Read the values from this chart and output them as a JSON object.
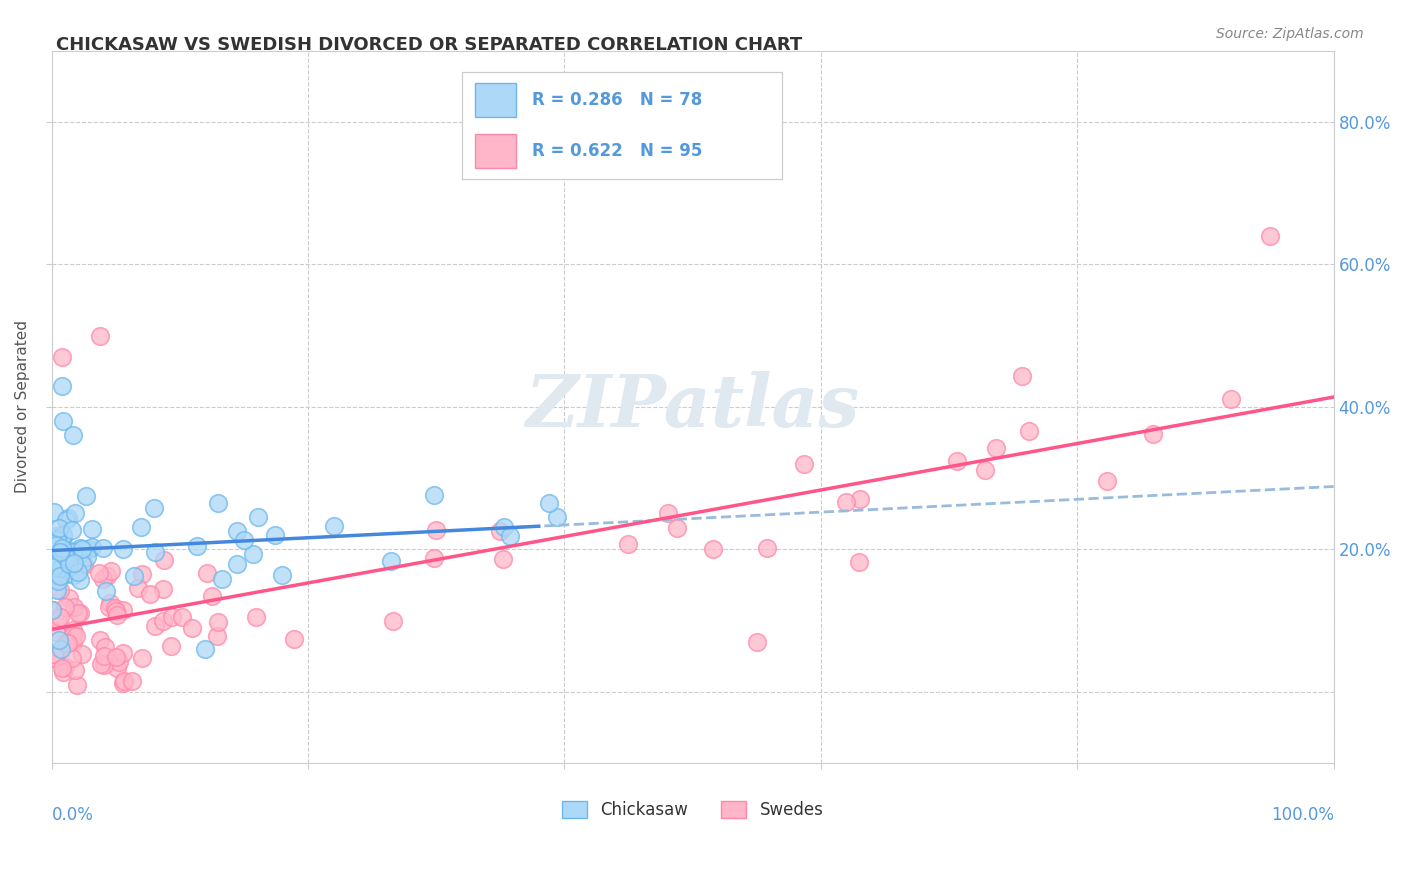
{
  "title": "CHICKASAW VS SWEDISH DIVORCED OR SEPARATED CORRELATION CHART",
  "source": "Source: ZipAtlas.com",
  "ylabel": "Divorced or Separated",
  "color_chickasaw_fill": "#ADD8F7",
  "color_chickasaw_edge": "#6BB8EE",
  "color_swedes_fill": "#FFB6C8",
  "color_swedes_edge": "#FF88AA",
  "color_line_chickasaw": "#4488DD",
  "color_line_swedes": "#FF5588",
  "color_dashed": "#99BBDD",
  "color_ytick": "#5599DD",
  "color_xtick": "#5599DD",
  "watermark_color": "#E0E8F0",
  "background": "#FFFFFF",
  "legend_r1": "R = 0.286",
  "legend_n1": "N = 78",
  "legend_r2": "R = 0.622",
  "legend_n2": "N = 95",
  "ytick_positions": [
    0.0,
    0.2,
    0.4,
    0.6,
    0.8
  ],
  "ytick_labels": [
    "",
    "20.0%",
    "40.0%",
    "60.0%",
    "80.0%"
  ],
  "xrange": [
    0.0,
    1.0
  ],
  "yrange": [
    -0.1,
    0.9
  ]
}
